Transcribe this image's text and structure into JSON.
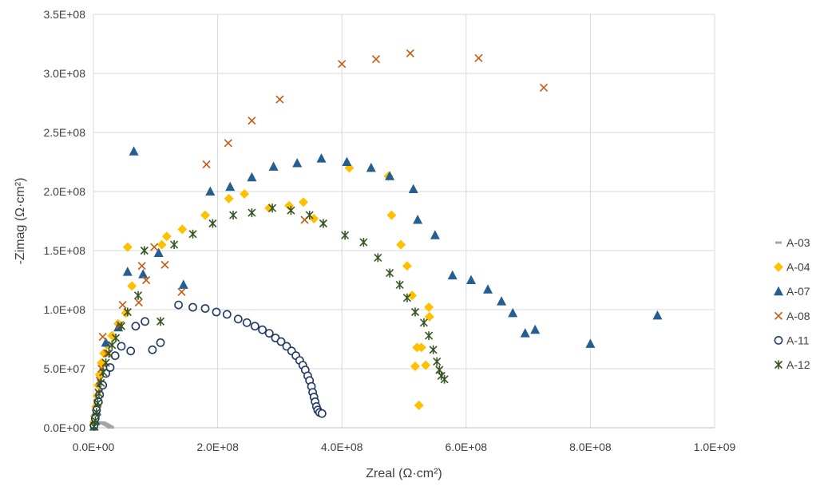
{
  "chart_data": {
    "type": "scatter",
    "xlabel": "Zreal (Ω·cm²)",
    "ylabel": "-Zimag (Ω·cm²)",
    "xlim": [
      0,
      1000000000
    ],
    "ylim": [
      0,
      350000000
    ],
    "x_ticks": [
      0,
      200000000,
      400000000,
      600000000,
      800000000,
      1000000000
    ],
    "x_tick_labels": [
      "0.0E+00",
      "2.0E+08",
      "4.0E+08",
      "6.0E+08",
      "8.0E+08",
      "1.0E+09"
    ],
    "y_ticks": [
      0,
      50000000,
      100000000,
      150000000,
      200000000,
      250000000,
      300000000,
      350000000
    ],
    "y_tick_labels": [
      "0.0E+00",
      "5.0E+07",
      "1.0E+08",
      "1.5E+08",
      "2.0E+08",
      "2.5E+08",
      "3.0E+08",
      "3.5E+08"
    ],
    "grid": "vertical and horizontal major gridlines",
    "legend_position": "right",
    "series": [
      {
        "name": "A-03",
        "color": "#a5a5a5",
        "marker": "dash",
        "points": [
          [
            500000.0,
            300000.0
          ],
          [
            1000000.0,
            800000.0
          ],
          [
            2000000.0,
            1500000.0
          ],
          [
            3000000.0,
            2200000.0
          ],
          [
            5000000.0,
            3000000.0
          ],
          [
            7000000.0,
            3600000.0
          ],
          [
            9000000.0,
            4000000.0
          ],
          [
            11000000.0,
            4300000.0
          ],
          [
            13000000.0,
            4400000.0
          ],
          [
            15000000.0,
            4200000.0
          ],
          [
            17000000.0,
            3800000.0
          ],
          [
            19000000.0,
            3200000.0
          ],
          [
            21000000.0,
            2600000.0
          ],
          [
            23000000.0,
            2000000.0
          ],
          [
            25000000.0,
            1400000.0
          ],
          [
            27000000.0,
            800000.0
          ],
          [
            28000000.0,
            300000.0
          ]
        ]
      },
      {
        "name": "A-04",
        "color": "#ffc000",
        "marker": "diamond",
        "points": [
          [
            300000.0,
            2000000.0
          ],
          [
            1000000.0,
            5000000.0
          ],
          [
            2000000.0,
            10000000.0
          ],
          [
            4000000.0,
            18000000.0
          ],
          [
            6000000.0,
            27000000.0
          ],
          [
            8000000.0,
            36000000.0
          ],
          [
            10000000.0,
            45000000.0
          ],
          [
            13000000.0,
            55000000.0
          ],
          [
            17000000.0,
            63000000.0
          ],
          [
            22000000.0,
            70000000.0
          ],
          [
            30000000.0,
            78000000.0
          ],
          [
            40000000.0,
            88000000.0
          ],
          [
            52000000.0,
            97000000.0
          ],
          [
            55000000.0,
            153000000.0
          ],
          [
            62000000.0,
            120000000.0
          ],
          [
            110000000.0,
            155000000.0
          ],
          [
            118000000.0,
            162000000.0
          ],
          [
            143000000.0,
            168000000.0
          ],
          [
            180000000.0,
            180000000.0
          ],
          [
            218000000.0,
            194000000.0
          ],
          [
            243000000.0,
            198000000.0
          ],
          [
            283000000.0,
            186000000.0
          ],
          [
            315000000.0,
            188000000.0
          ],
          [
            338000000.0,
            191000000.0
          ],
          [
            355000000.0,
            177000000.0
          ],
          [
            412000000.0,
            220000000.0
          ],
          [
            475000000.0,
            213000000.0
          ],
          [
            480000000.0,
            180000000.0
          ],
          [
            495000000.0,
            155000000.0
          ],
          [
            505000000.0,
            137000000.0
          ],
          [
            513000000.0,
            112000000.0
          ],
          [
            540000000.0,
            102000000.0
          ],
          [
            541000000.0,
            94000000.0
          ],
          [
            521000000.0,
            68000000.0
          ],
          [
            528000000.0,
            68000000.0
          ],
          [
            518000000.0,
            52000000.0
          ],
          [
            535000000.0,
            53000000.0
          ],
          [
            524000000.0,
            19000000.0
          ]
        ]
      },
      {
        "name": "A-07",
        "color": "#255e91",
        "marker": "triangle",
        "points": [
          [
            1000000.0,
            1000000.0
          ],
          [
            3000000.0,
            6000000.0
          ],
          [
            5000000.0,
            14000000.0
          ],
          [
            8000000.0,
            24000000.0
          ],
          [
            12000000.0,
            38000000.0
          ],
          [
            20000000.0,
            72000000.0
          ],
          [
            40000000.0,
            85000000.0
          ],
          [
            55000000.0,
            132000000.0
          ],
          [
            65000000.0,
            234000000.0
          ],
          [
            80000000.0,
            130000000.0
          ],
          [
            105000000.0,
            148000000.0
          ],
          [
            145000000.0,
            121000000.0
          ],
          [
            188000000.0,
            200000000.0
          ],
          [
            220000000.0,
            204000000.0
          ],
          [
            255000000.0,
            212000000.0
          ],
          [
            290000000.0,
            221000000.0
          ],
          [
            328000000.0,
            224000000.0
          ],
          [
            367000000.0,
            228000000.0
          ],
          [
            408000000.0,
            225000000.0
          ],
          [
            447000000.0,
            220000000.0
          ],
          [
            477000000.0,
            213000000.0
          ],
          [
            515000000.0,
            202000000.0
          ],
          [
            522000000.0,
            176000000.0
          ],
          [
            550000000.0,
            163000000.0
          ],
          [
            578000000.0,
            129000000.0
          ],
          [
            608000000.0,
            125000000.0
          ],
          [
            635000000.0,
            117000000.0
          ],
          [
            657000000.0,
            107000000.0
          ],
          [
            675000000.0,
            97000000.0
          ],
          [
            695000000.0,
            80000000.0
          ],
          [
            711000000.0,
            83000000.0
          ],
          [
            800000000.0,
            71000000.0
          ],
          [
            908000000.0,
            95000000.0
          ]
        ]
      },
      {
        "name": "A-08",
        "color": "#c55a11",
        "marker": "x",
        "points": [
          [
            1000000.0,
            1000000.0
          ],
          [
            2000000.0,
            5000000.0
          ],
          [
            4000000.0,
            12000000.0
          ],
          [
            6000000.0,
            20000000.0
          ],
          [
            8000000.0,
            30000000.0
          ],
          [
            10000000.0,
            40000000.0
          ],
          [
            13000000.0,
            50000000.0
          ],
          [
            15000000.0,
            77000000.0
          ],
          [
            22000000.0,
            63000000.0
          ],
          [
            43000000.0,
            87000000.0
          ],
          [
            47000000.0,
            104000000.0
          ],
          [
            73000000.0,
            106000000.0
          ],
          [
            78000000.0,
            137000000.0
          ],
          [
            85000000.0,
            125000000.0
          ],
          [
            98000000.0,
            153000000.0
          ],
          [
            115000000.0,
            138000000.0
          ],
          [
            142000000.0,
            115000000.0
          ],
          [
            182000000.0,
            223000000.0
          ],
          [
            217000000.0,
            241000000.0
          ],
          [
            255000000.0,
            260000000.0
          ],
          [
            300000000.0,
            278000000.0
          ],
          [
            340000000.0,
            176000000.0
          ],
          [
            400000000.0,
            308000000.0
          ],
          [
            455000000.0,
            312000000.0
          ],
          [
            510000000.0,
            317000000.0
          ],
          [
            620000000.0,
            313000000.0
          ],
          [
            725000000.0,
            288000000.0
          ]
        ]
      },
      {
        "name": "A-11",
        "color": "#1f3864",
        "marker": "circle",
        "points": [
          [
            1000000.0,
            2000000.0
          ],
          [
            3000000.0,
            8000000.0
          ],
          [
            5000000.0,
            15000000.0
          ],
          [
            8000000.0,
            22000000.0
          ],
          [
            10000000.0,
            28000000.0
          ],
          [
            15000000.0,
            36000000.0
          ],
          [
            20000000.0,
            46000000.0
          ],
          [
            27000000.0,
            51000000.0
          ],
          [
            35000000.0,
            61000000.0
          ],
          [
            45000000.0,
            69000000.0
          ],
          [
            60000000.0,
            65000000.0
          ],
          [
            68000000.0,
            86000000.0
          ],
          [
            83000000.0,
            90000000.0
          ],
          [
            95000000.0,
            66000000.0
          ],
          [
            108000000.0,
            72000000.0
          ],
          [
            137000000.0,
            104000000.0
          ],
          [
            160000000.0,
            102000000.0
          ],
          [
            180000000.0,
            101000000.0
          ],
          [
            198000000.0,
            98000000.0
          ],
          [
            215000000.0,
            96000000.0
          ],
          [
            233000000.0,
            92000000.0
          ],
          [
            247000000.0,
            89000000.0
          ],
          [
            260000000.0,
            86000000.0
          ],
          [
            272000000.0,
            83000000.0
          ],
          [
            283000000.0,
            80000000.0
          ],
          [
            293000000.0,
            76000000.0
          ],
          [
            302000000.0,
            73000000.0
          ],
          [
            311000000.0,
            69000000.0
          ],
          [
            319000000.0,
            65000000.0
          ],
          [
            326000000.0,
            61000000.0
          ],
          [
            332000000.0,
            57000000.0
          ],
          [
            337000000.0,
            53000000.0
          ],
          [
            341000000.0,
            49000000.0
          ],
          [
            345000000.0,
            44000000.0
          ],
          [
            348000000.0,
            40000000.0
          ],
          [
            351000000.0,
            35000000.0
          ],
          [
            353000000.0,
            30000000.0
          ],
          [
            355000000.0,
            26000000.0
          ],
          [
            357000000.0,
            22000000.0
          ],
          [
            359000000.0,
            18000000.0
          ],
          [
            361000000.0,
            15000000.0
          ],
          [
            364000000.0,
            13000000.0
          ],
          [
            368000000.0,
            12000000.0
          ]
        ]
      },
      {
        "name": "A-12",
        "color": "#375623",
        "marker": "asterisk",
        "points": [
          [
            1000000.0,
            1000000.0
          ],
          [
            3000000.0,
            6000000.0
          ],
          [
            5000000.0,
            13000000.0
          ],
          [
            7000000.0,
            21000000.0
          ],
          [
            9000000.0,
            29000000.0
          ],
          [
            12000000.0,
            38000000.0
          ],
          [
            16000000.0,
            47000000.0
          ],
          [
            20000000.0,
            55000000.0
          ],
          [
            25000000.0,
            63000000.0
          ],
          [
            30000000.0,
            70000000.0
          ],
          [
            36000000.0,
            76000000.0
          ],
          [
            45000000.0,
            86000000.0
          ],
          [
            55000000.0,
            98000000.0
          ],
          [
            72000000.0,
            112000000.0
          ],
          [
            82000000.0,
            150000000.0
          ],
          [
            108000000.0,
            90000000.0
          ],
          [
            130000000.0,
            155000000.0
          ],
          [
            160000000.0,
            164000000.0
          ],
          [
            192000000.0,
            173000000.0
          ],
          [
            225000000.0,
            180000000.0
          ],
          [
            255000000.0,
            182000000.0
          ],
          [
            288000000.0,
            186000000.0
          ],
          [
            318000000.0,
            184000000.0
          ],
          [
            348000000.0,
            180000000.0
          ],
          [
            370000000.0,
            173000000.0
          ],
          [
            405000000.0,
            163000000.0
          ],
          [
            435000000.0,
            157000000.0
          ],
          [
            458000000.0,
            144000000.0
          ],
          [
            477000000.0,
            131000000.0
          ],
          [
            493000000.0,
            121000000.0
          ],
          [
            505000000.0,
            110000000.0
          ],
          [
            518000000.0,
            98000000.0
          ],
          [
            532000000.0,
            89000000.0
          ],
          [
            540000000.0,
            78000000.0
          ],
          [
            547000000.0,
            66000000.0
          ],
          [
            553000000.0,
            56000000.0
          ],
          [
            557000000.0,
            49000000.0
          ],
          [
            560000000.0,
            44000000.0
          ],
          [
            565000000.0,
            41000000.0
          ]
        ]
      }
    ]
  }
}
